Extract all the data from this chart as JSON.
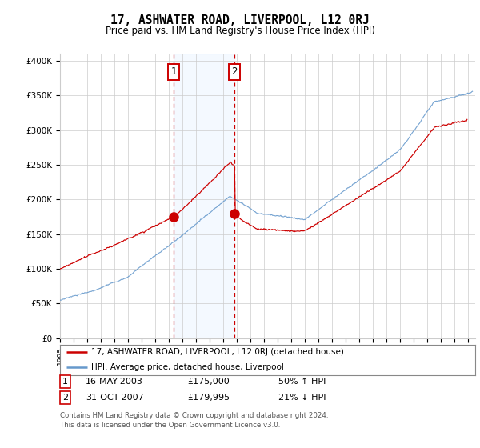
{
  "title": "17, ASHWATER ROAD, LIVERPOOL, L12 0RJ",
  "subtitle": "Price paid vs. HM Land Registry's House Price Index (HPI)",
  "ylabel_ticks": [
    "£0",
    "£50K",
    "£100K",
    "£150K",
    "£200K",
    "£250K",
    "£300K",
    "£350K",
    "£400K"
  ],
  "ytick_values": [
    0,
    50000,
    100000,
    150000,
    200000,
    250000,
    300000,
    350000,
    400000
  ],
  "ylim": [
    0,
    410000
  ],
  "xlim_start": 1995.0,
  "xlim_end": 2025.5,
  "sale1_date": 2003.37,
  "sale1_price": 175000,
  "sale2_date": 2007.83,
  "sale2_price": 179995,
  "sale1_label": "1",
  "sale2_label": "2",
  "legend_line1": "17, ASHWATER ROAD, LIVERPOOL, L12 0RJ (detached house)",
  "legend_line2": "HPI: Average price, detached house, Liverpool",
  "footnote1": "Contains HM Land Registry data © Crown copyright and database right 2024.",
  "footnote2": "This data is licensed under the Open Government Licence v3.0.",
  "color_red": "#cc0000",
  "color_blue": "#6699cc",
  "color_shade": "#ddeeff",
  "background_color": "#ffffff",
  "grid_color": "#cccccc"
}
